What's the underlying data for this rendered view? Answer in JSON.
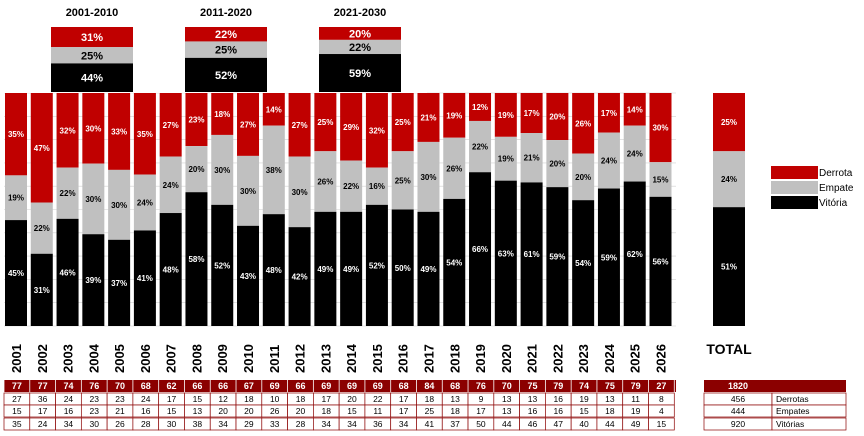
{
  "chart_data": {
    "type": "bar",
    "stacked": true,
    "percent_stacked": true,
    "colors": {
      "derrota": "#c00000",
      "empate": "#c0c0c0",
      "vitoria": "#000000",
      "grid": "#d0d0d0",
      "header_bg": "#8b0000"
    },
    "years": [
      "2001",
      "2002",
      "2003",
      "2004",
      "2005",
      "2006",
      "2007",
      "2008",
      "2009",
      "2010",
      "2011",
      "2012",
      "2013",
      "2014",
      "2015",
      "2016",
      "2017",
      "2018",
      "2019",
      "2020",
      "2021",
      "2022",
      "2023",
      "2024",
      "2025",
      "2026"
    ],
    "series": [
      {
        "name": "Vitória",
        "values": [
          45,
          31,
          46,
          39,
          37,
          41,
          48,
          58,
          52,
          43,
          48,
          42,
          49,
          49,
          52,
          50,
          49,
          54,
          66,
          63,
          61,
          59,
          54,
          59,
          62,
          56
        ]
      },
      {
        "name": "Empate",
        "values": [
          19,
          22,
          22,
          30,
          30,
          24,
          24,
          20,
          30,
          30,
          38,
          30,
          26,
          22,
          16,
          25,
          30,
          26,
          22,
          19,
          21,
          20,
          20,
          24,
          24,
          15
        ]
      },
      {
        "name": "Derrota",
        "values": [
          35,
          47,
          32,
          30,
          33,
          35,
          27,
          23,
          18,
          27,
          14,
          27,
          25,
          29,
          32,
          25,
          21,
          19,
          12,
          19,
          17,
          20,
          26,
          17,
          14,
          30
        ]
      }
    ],
    "labels": {
      "vitoria": [
        "45%",
        "31%",
        "46%",
        "39%",
        "37%",
        "41%",
        "48%",
        "58%",
        "52%",
        "43%",
        "48%",
        "42%",
        "49%",
        "49%",
        "52%",
        "50%",
        "49%",
        "54%",
        "66%",
        "63%",
        "61%",
        "59%",
        "54%",
        "59%",
        "62%",
        "56%"
      ],
      "empate": [
        "19%",
        "22%",
        "22%",
        "30%",
        "30%",
        "24%",
        "24%",
        "20%",
        "30%",
        "30%",
        "38%",
        "30%",
        "26%",
        "22%",
        "16%",
        "25%",
        "30%",
        "26%",
        "22%",
        "19%",
        "21%",
        "20%",
        "20%",
        "24%",
        "24%",
        "15%"
      ],
      "derrota": [
        "35%",
        "47%",
        "32%",
        "30%",
        "33%",
        "35%",
        "27%",
        "23%",
        "18%",
        "27%",
        "14%",
        "27%",
        "25%",
        "29%",
        "32%",
        "25%",
        "21%",
        "19%",
        "12%",
        "19%",
        "17%",
        "20%",
        "26%",
        "17%",
        "14%",
        "30%"
      ]
    },
    "decades": [
      {
        "title": "2001-2010",
        "vitoria": 44,
        "empate": 25,
        "derrota": 31,
        "labels": [
          "44%",
          "25%",
          "31%"
        ]
      },
      {
        "title": "2011-2020",
        "vitoria": 52,
        "empate": 25,
        "derrota": 22,
        "labels": [
          "52%",
          "25%",
          "22%"
        ]
      },
      {
        "title": "2021-2030",
        "vitoria": 59,
        "empate": 22,
        "derrota": 20,
        "labels": [
          "59%",
          "22%",
          "20%"
        ]
      }
    ],
    "total": {
      "label": "TOTAL",
      "vitoria": 51,
      "empate": 24,
      "derrota": 25,
      "labels": [
        "51%",
        "24%",
        "25%"
      ]
    },
    "legend": [
      "Derrota",
      "Empate",
      "Vitória"
    ],
    "legend_position": "right",
    "table": {
      "jogos": [
        "77",
        "77",
        "74",
        "76",
        "70",
        "68",
        "62",
        "66",
        "66",
        "67",
        "69",
        "66",
        "69",
        "69",
        "69",
        "68",
        "84",
        "68",
        "76",
        "70",
        "75",
        "79",
        "74",
        "75",
        "79",
        "27"
      ],
      "derrotas": [
        "27",
        "36",
        "24",
        "23",
        "23",
        "24",
        "17",
        "15",
        "12",
        "18",
        "10",
        "18",
        "17",
        "20",
        "22",
        "17",
        "18",
        "13",
        "9",
        "13",
        "13",
        "16",
        "19",
        "13",
        "11",
        "8"
      ],
      "empates": [
        "15",
        "17",
        "16",
        "23",
        "21",
        "16",
        "15",
        "13",
        "20",
        "20",
        "26",
        "20",
        "18",
        "15",
        "11",
        "17",
        "25",
        "18",
        "17",
        "13",
        "16",
        "16",
        "15",
        "18",
        "19",
        "4"
      ],
      "vitorias": [
        "35",
        "24",
        "34",
        "30",
        "26",
        "28",
        "30",
        "38",
        "34",
        "29",
        "33",
        "28",
        "34",
        "34",
        "36",
        "34",
        "41",
        "37",
        "50",
        "44",
        "46",
        "47",
        "40",
        "44",
        "49",
        "15"
      ],
      "total_jogos": "1820",
      "total_derrotas": "456",
      "total_empates": "444",
      "total_vitorias": "920",
      "row_labels": [
        "Derrotas",
        "Empates",
        "Vitórias"
      ]
    }
  }
}
